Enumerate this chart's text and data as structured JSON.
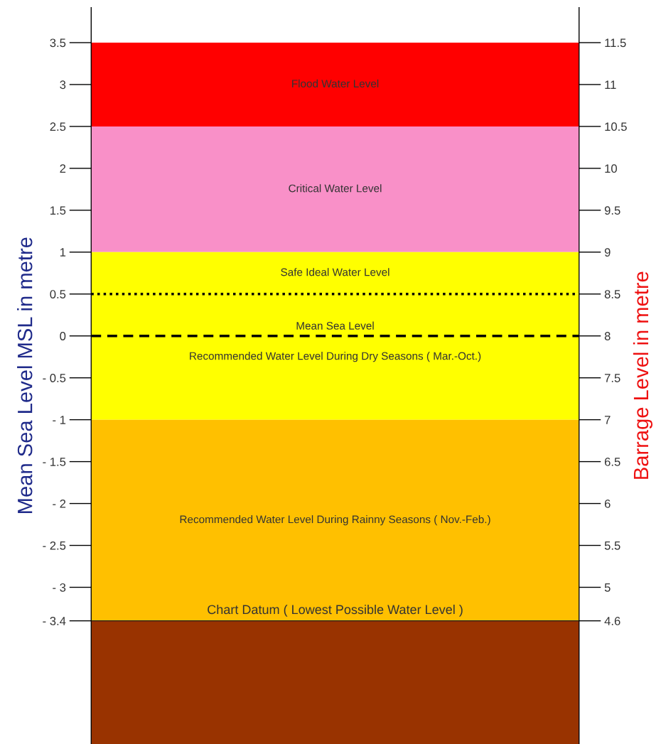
{
  "chart_data": {
    "type": "bar",
    "ylabel": "Mean Sea Level MSL in metre",
    "y2label": "Barrage Level in metre",
    "categories": [
      null
    ],
    "values": [
      null
    ],
    "ylim": [
      -4.87,
      3.92
    ],
    "yticks": [
      3.5,
      3,
      2.5,
      2,
      1.5,
      1,
      0.5,
      0,
      {
        "value": -0.5,
        "label": "- 0.5"
      },
      {
        "value": -1,
        "label": "- 1"
      },
      {
        "value": -1.5,
        "label": "- 1.5"
      },
      {
        "value": -2,
        "label": "- 2"
      },
      {
        "value": -2.5,
        "label": "- 2.5"
      },
      {
        "value": -3,
        "label": "- 3"
      },
      {
        "value": -3.4,
        "label": "- 3.4"
      }
    ],
    "y2lim": [
      3.13,
      11.92
    ],
    "y2ticks": [
      11.5,
      11,
      10.5,
      10,
      9.5,
      9,
      8.5,
      8,
      7.5,
      7,
      6.5,
      6,
      5.5,
      5,
      4.6
    ],
    "bands": [
      {
        "axis": "y",
        "from": 2.5,
        "to": 3.5,
        "label": "Flood Water Level",
        "color": "#ff0000"
      },
      {
        "axis": "y",
        "from": 1,
        "to": 2.5,
        "label": "Critical Water Level",
        "color": "#f990c8"
      },
      {
        "axis": "y",
        "from": 0.5,
        "to": 1,
        "label": "Safe Ideal Water Level",
        "color": "#ffff00"
      },
      {
        "axis": "y",
        "from": -1,
        "to": 0.5,
        "label": "Recommended Water Level During Dry Seasons ( Mar.-Oct.)",
        "color": "#ffff00"
      },
      {
        "axis": "y",
        "from": -3.4,
        "to": -1,
        "label": "Recommended Water Level During Rainny Seasons ( Nov.-Feb.)",
        "color": "#ffc000"
      },
      {
        "axis": "y",
        "from": -4.87,
        "to": -3.4,
        "label": null,
        "color": "#993300"
      }
    ],
    "ref_lines": [
      {
        "axis": "y",
        "value": 0.5,
        "label": null,
        "color": "#000000",
        "line_style": "dotted"
      },
      {
        "axis": "y",
        "value": 0,
        "label": "Mean Sea Level",
        "color": "#000000",
        "line_style": "dashed"
      },
      {
        "axis": "y",
        "value": -3.4,
        "label": "Chart Datum ( Lowest Possible Water Level )",
        "color": "#222222",
        "line_style": "solid"
      }
    ]
  }
}
